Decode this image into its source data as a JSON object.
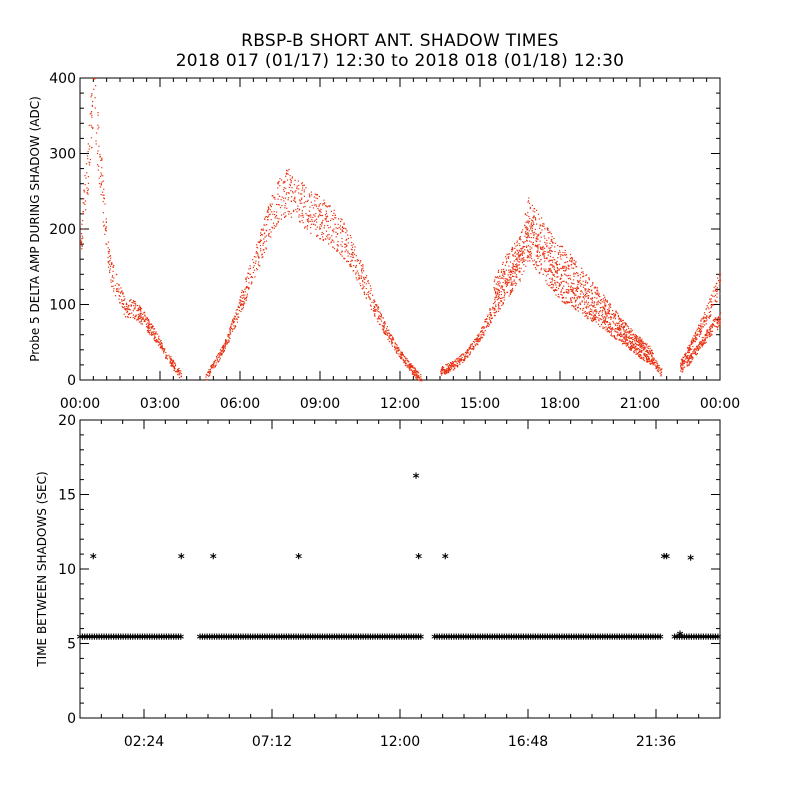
{
  "title_line1": "RBSP-B SHORT ANT. SHADOW TIMES",
  "title_line2": "2018 017 (01/17) 12:30 to 2018 018 (01/18) 12:30",
  "chart_data": [
    {
      "type": "scatter",
      "name": "delta-amp",
      "ylabel": "Probe 5 DELTA AMP DURING SHADOW (ADC)",
      "xlabel": "",
      "xlim": [
        0,
        24
      ],
      "ylim": [
        0,
        400
      ],
      "color": "#e8300f",
      "x_ticks": [
        0,
        3,
        6,
        9,
        12,
        15,
        18,
        21,
        24
      ],
      "x_tick_labels": [
        "00:00",
        "03:00",
        "06:00",
        "09:00",
        "12:00",
        "15:00",
        "18:00",
        "21:00",
        "00:00"
      ],
      "y_ticks": [
        0,
        100,
        200,
        300,
        400
      ],
      "y_tick_labels": [
        "0",
        "100",
        "200",
        "300",
        "400"
      ],
      "series": [
        {
          "name": "pass-1",
          "x": [
            0.0,
            0.3,
            0.5,
            0.7,
            0.9,
            1.1,
            1.4,
            1.7,
            2.0,
            2.3,
            2.6,
            2.9,
            3.2,
            3.5,
            3.8
          ],
          "y": [
            180,
            290,
            390,
            300,
            220,
            150,
            120,
            95,
            95,
            85,
            70,
            55,
            35,
            20,
            5
          ]
        },
        {
          "name": "pass-2",
          "x": [
            4.7,
            5.0,
            5.4,
            5.8,
            6.2,
            6.6,
            7.0,
            7.4,
            7.8,
            8.2,
            8.6,
            9.0,
            9.4,
            9.8,
            10.2,
            10.6,
            11.0,
            11.4,
            11.8,
            12.2,
            12.5,
            12.8
          ],
          "y": [
            5,
            20,
            45,
            80,
            120,
            160,
            200,
            240,
            250,
            235,
            225,
            215,
            205,
            190,
            165,
            135,
            100,
            70,
            45,
            25,
            12,
            3
          ]
        },
        {
          "name": "pass-3",
          "x": [
            13.5,
            14.0,
            14.5,
            15.0,
            15.5,
            16.0,
            16.5,
            16.8,
            17.2,
            17.6,
            18.0,
            18.5,
            19.0,
            19.5,
            20.0,
            20.5,
            21.0,
            21.5,
            21.8
          ],
          "y": [
            12,
            20,
            35,
            60,
            95,
            125,
            150,
            185,
            160,
            140,
            120,
            110,
            95,
            80,
            65,
            50,
            35,
            25,
            10
          ]
        },
        {
          "name": "pass-3-upper",
          "x": [
            15.5,
            16.0,
            16.5,
            16.8,
            17.2,
            17.6,
            18.0,
            18.5,
            19.0,
            19.5,
            20.0,
            20.5,
            21.0,
            21.5
          ],
          "y": [
            120,
            150,
            170,
            215,
            195,
            175,
            160,
            145,
            125,
            105,
            85,
            65,
            50,
            35
          ]
        },
        {
          "name": "pass-4",
          "x": [
            22.5,
            22.8,
            23.1,
            23.4,
            23.7,
            24.0
          ],
          "y": [
            15,
            25,
            40,
            55,
            70,
            80
          ]
        },
        {
          "name": "pass-4-upper",
          "x": [
            22.5,
            22.8,
            23.1,
            23.4,
            23.7,
            24.0
          ],
          "y": [
            20,
            40,
            60,
            80,
            105,
            130
          ]
        }
      ]
    },
    {
      "type": "scatter",
      "name": "time-between-shadows",
      "ylabel": "TIME BETWEEN SHADOWS (SEC)",
      "xlabel": "",
      "xlim": [
        0,
        24
      ],
      "ylim": [
        0,
        20
      ],
      "marker": "*",
      "x_ticks": [
        2.4,
        7.2,
        12.0,
        16.8,
        21.6
      ],
      "x_tick_labels": [
        "02:24",
        "07:12",
        "12:00",
        "16:48",
        "21:36"
      ],
      "y_ticks": [
        0,
        5,
        10,
        15,
        20
      ],
      "y_tick_labels": [
        "0",
        "5",
        "10",
        "15",
        "20"
      ],
      "baseline_value": 5.4,
      "baseline_segments": [
        [
          0.0,
          3.8
        ],
        [
          4.5,
          12.8
        ],
        [
          13.3,
          21.8
        ],
        [
          22.3,
          24.0
        ]
      ],
      "outlier_points": [
        {
          "x": 0.5,
          "y": 10.8
        },
        {
          "x": 3.8,
          "y": 10.8
        },
        {
          "x": 5.0,
          "y": 10.8
        },
        {
          "x": 8.2,
          "y": 10.8
        },
        {
          "x": 12.6,
          "y": 16.2
        },
        {
          "x": 12.7,
          "y": 10.8
        },
        {
          "x": 13.7,
          "y": 10.8
        },
        {
          "x": 21.9,
          "y": 10.8
        },
        {
          "x": 22.0,
          "y": 10.8
        },
        {
          "x": 22.5,
          "y": 5.6
        },
        {
          "x": 22.9,
          "y": 10.7
        }
      ]
    }
  ]
}
